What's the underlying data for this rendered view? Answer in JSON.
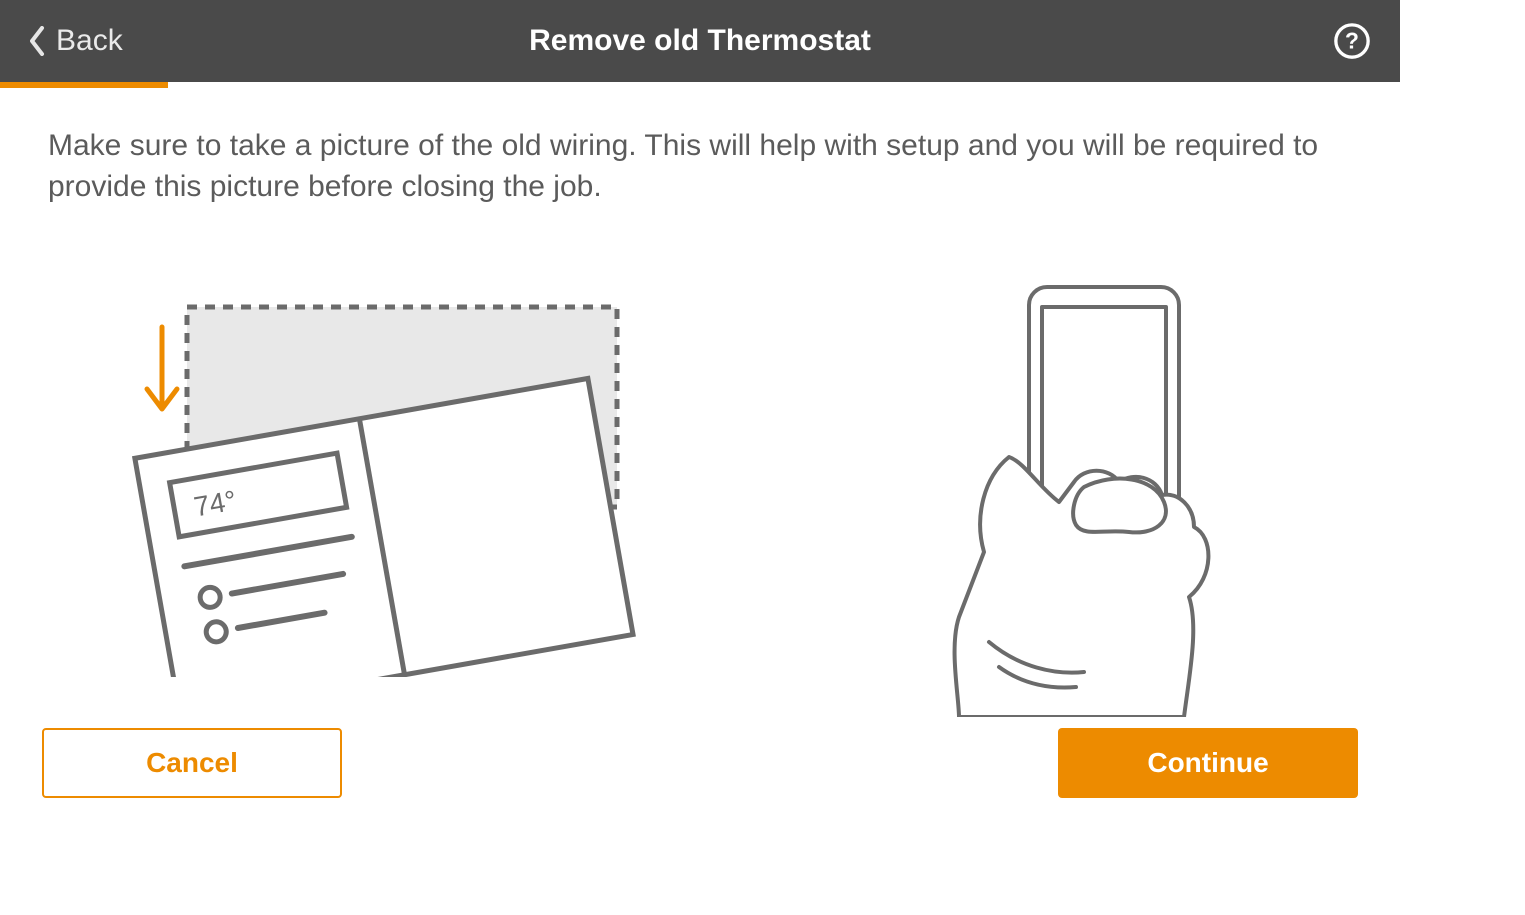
{
  "header": {
    "back_label": "Back",
    "title": "Remove old Thermostat"
  },
  "progress": {
    "percent": 12,
    "fill_color": "#ed8b00",
    "track_color": "#ffffff"
  },
  "main": {
    "instruction": "Make sure to take a picture of the old wiring. This will help with setup and you will be required to provide this picture before closing the job.",
    "thermostat_display_value": "74°"
  },
  "footer": {
    "cancel_label": "Cancel",
    "continue_label": "Continue"
  },
  "colors": {
    "header_bg": "#4a4a4a",
    "accent": "#ed8b00",
    "text_body": "#5b5b5b",
    "illustration_stroke": "#6b6b6b",
    "illustration_fill_light": "#e8e8e8",
    "white": "#ffffff"
  },
  "illustrations": {
    "left": {
      "type": "infographic",
      "description": "old-thermostat-being-removed",
      "elements": [
        "dashed-outline-previous-position",
        "down-arrow-orange",
        "thermostat-device-tilted",
        "display-showing-temperature",
        "control-dots-and-sliders"
      ],
      "arrow_color": "#ed8b00",
      "stroke_color": "#6b6b6b",
      "dashed_bg_fill": "#e8e8e8",
      "device_fill": "#ffffff",
      "tilt_degrees": -10
    },
    "right": {
      "type": "infographic",
      "description": "hand-holding-phone-taking-photo",
      "elements": [
        "phone-outline",
        "camera-button-circle",
        "hand-outline",
        "wrist-lines"
      ],
      "stroke_color": "#6b6b6b",
      "phone_button_bar": "#6b6b6b",
      "fill": "#ffffff"
    }
  }
}
